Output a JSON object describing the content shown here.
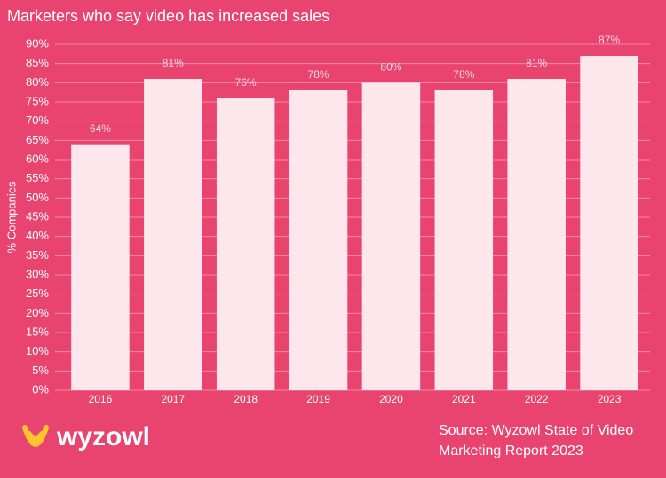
{
  "chart_data": {
    "type": "bar",
    "title": "Marketers who say video has increased sales",
    "y_label": "% Companies",
    "categories": [
      "2016",
      "2017",
      "2018",
      "2019",
      "2020",
      "2021",
      "2022",
      "2023"
    ],
    "values": [
      64,
      81,
      76,
      78,
      80,
      78,
      81,
      87
    ],
    "value_labels": [
      "64%",
      "81%",
      "76%",
      "78%",
      "80%",
      "78%",
      "81%",
      "87%"
    ],
    "color": "#fde6ec",
    "ylim": [
      0,
      90
    ],
    "yticks": [
      {
        "value": 0,
        "label": "0%"
      },
      {
        "value": 5,
        "label": "5%"
      },
      {
        "value": 10,
        "label": "10%"
      },
      {
        "value": 15,
        "label": "15%"
      },
      {
        "value": 20,
        "label": "20%"
      },
      {
        "value": 25,
        "label": "25%"
      },
      {
        "value": 30,
        "label": "30%"
      },
      {
        "value": 35,
        "label": "35%"
      },
      {
        "value": 40,
        "label": "40%"
      },
      {
        "value": 45,
        "label": "45%"
      },
      {
        "value": 50,
        "label": "50%"
      },
      {
        "value": 55,
        "label": "55%"
      },
      {
        "value": 60,
        "label": "60%"
      },
      {
        "value": 65,
        "label": "65%"
      },
      {
        "value": 70,
        "label": "70%"
      },
      {
        "value": 75,
        "label": "75%"
      },
      {
        "value": 80,
        "label": "80%"
      },
      {
        "value": 85,
        "label": "85%"
      },
      {
        "value": 90,
        "label": "90%"
      }
    ],
    "grid": true,
    "source": [
      "Source: Wyzowl State of Video",
      "Marketing Report 2023"
    ],
    "logo": "wyzowl"
  }
}
